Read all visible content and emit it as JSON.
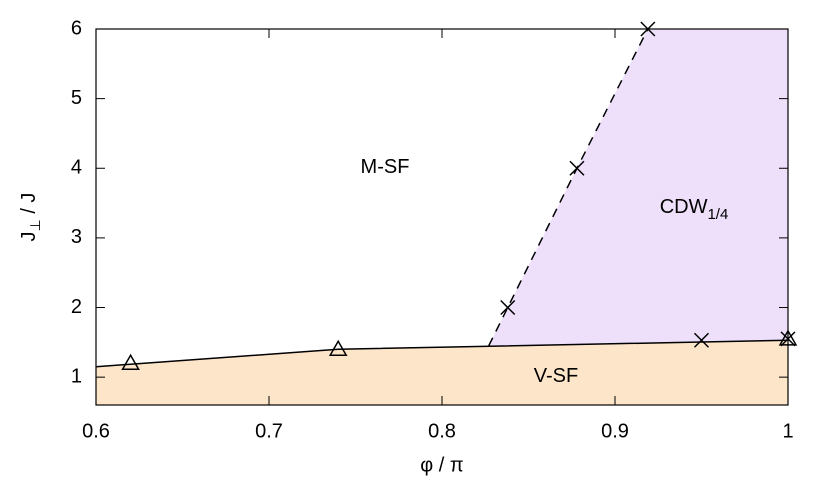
{
  "chart_data": {
    "type": "line",
    "xlabel": "φ / π",
    "ylabel": {
      "main": "J",
      "sub": "⊥",
      "rest": " / J"
    },
    "xlim": [
      0.6,
      1
    ],
    "ylim": [
      0.6,
      6
    ],
    "xticks": [
      0.6,
      0.7,
      0.8,
      0.9,
      1
    ],
    "yticks": [
      1,
      2,
      3,
      4,
      5,
      6
    ],
    "series": [
      {
        "style": "solid",
        "color": "#000000",
        "fill_below": "#fde5ca",
        "x": [
          0.6,
          0.74,
          1.0
        ],
        "values": [
          1.15,
          1.4,
          1.53
        ]
      },
      {
        "style": "dashed",
        "color": "#000000",
        "fill_right": "#eee0fb",
        "x": [
          0.827,
          0.838,
          0.878,
          0.919
        ],
        "values": [
          1.45,
          2,
          4,
          6
        ]
      },
      {
        "style": "triangle",
        "color": "#000000",
        "x": [
          0.62,
          0.74,
          1.0
        ],
        "values": [
          1.2,
          1.4,
          1.55
        ]
      },
      {
        "style": "cross",
        "color": "#000000",
        "x": [
          0.838,
          0.878,
          0.919,
          0.95,
          1.0
        ],
        "values": [
          2,
          4,
          6,
          1.53,
          1.55
        ]
      }
    ],
    "annotations": [
      {
        "text": "M-SF"
      },
      {
        "text": "CDW",
        "sub": "1/4"
      },
      {
        "text": "V-SF"
      }
    ]
  }
}
